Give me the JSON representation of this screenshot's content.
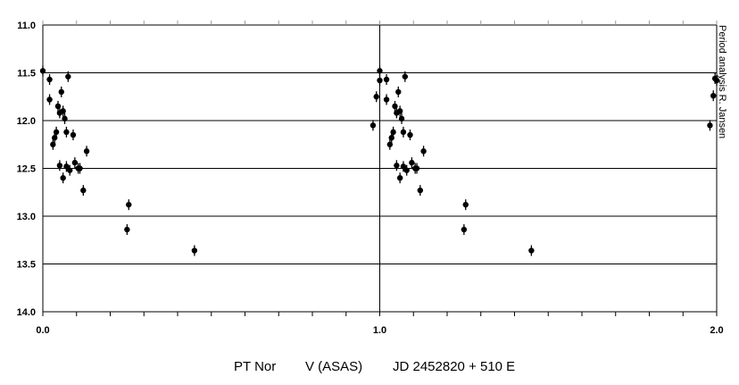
{
  "chart_data": {
    "type": "scatter",
    "title": "",
    "caption": {
      "star": "PT Nor",
      "band": "V (ASAS)",
      "ephemeris": "JD 2452820 + 510 E"
    },
    "side_note": "Period analysis R. Jansen",
    "xlim": [
      0.0,
      2.0
    ],
    "ylim": [
      11.0,
      14.0
    ],
    "y_inverted": true,
    "x_ticks": [
      "0.0",
      "1.0",
      "2.0"
    ],
    "y_ticks": [
      "11.0",
      "11.5",
      "12.0",
      "12.5",
      "13.0",
      "13.5",
      "14.0"
    ],
    "grid": "horizontal",
    "marker": "filled-circle-with-errorbar",
    "series": [
      {
        "name": "",
        "x": [
          0.0,
          0.02,
          0.02,
          0.03,
          0.035,
          0.04,
          0.045,
          0.05,
          0.05,
          0.055,
          0.06,
          0.06,
          0.065,
          0.07,
          0.07,
          0.075,
          0.08,
          0.09,
          0.095,
          0.105,
          0.11,
          0.12,
          0.13,
          0.25,
          0.255,
          0.45,
          0.98,
          0.99,
          1.0,
          1.0,
          1.02,
          1.02,
          1.03,
          1.035,
          1.04,
          1.045,
          1.05,
          1.05,
          1.055,
          1.06,
          1.06,
          1.065,
          1.07,
          1.07,
          1.075,
          1.08,
          1.09,
          1.095,
          1.105,
          1.11,
          1.12,
          1.13,
          1.25,
          1.255,
          1.45,
          1.98,
          1.99,
          1.995,
          2.0
        ],
        "y": [
          11.48,
          11.57,
          11.78,
          12.25,
          12.18,
          12.12,
          11.85,
          11.92,
          12.47,
          11.7,
          11.9,
          12.6,
          11.98,
          12.48,
          12.12,
          11.54,
          12.52,
          12.15,
          12.44,
          12.5,
          12.5,
          12.73,
          12.32,
          13.14,
          12.88,
          13.36,
          12.05,
          11.75,
          11.58,
          11.48,
          11.57,
          11.78,
          12.25,
          12.18,
          12.12,
          11.85,
          11.92,
          12.47,
          11.7,
          11.9,
          12.6,
          11.98,
          12.48,
          12.12,
          11.54,
          12.52,
          12.15,
          12.44,
          12.5,
          12.5,
          12.73,
          12.32,
          13.14,
          12.88,
          13.36,
          12.05,
          11.74,
          11.56,
          11.58
        ]
      }
    ]
  }
}
